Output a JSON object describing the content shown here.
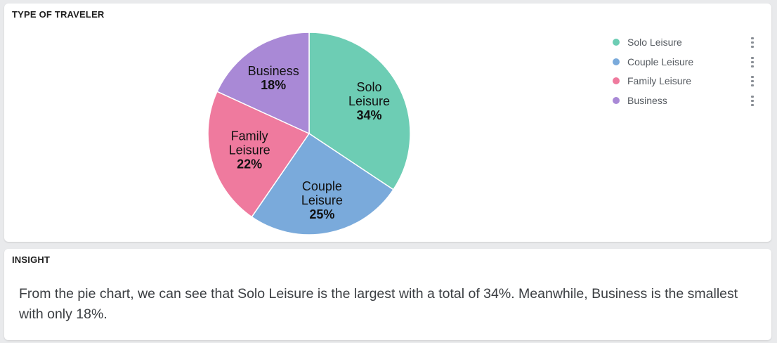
{
  "chart_panel": {
    "title": "TYPE OF TRAVELER"
  },
  "chart_data": {
    "type": "pie",
    "slices": [
      {
        "label_lines": [
          "Solo",
          "Leisure"
        ],
        "legend": "Solo Leisure",
        "value": 34,
        "pct_label": "34%",
        "color": "#6dcdb4"
      },
      {
        "label_lines": [
          "Couple",
          "Leisure"
        ],
        "legend": "Couple Leisure",
        "value": 25,
        "pct_label": "25%",
        "color": "#7aaadb"
      },
      {
        "label_lines": [
          "Family",
          "Leisure"
        ],
        "legend": "Family Leisure",
        "value": 22,
        "pct_label": "22%",
        "color": "#ef7a9e"
      },
      {
        "label_lines": [
          "Business"
        ],
        "legend": "Business",
        "value": 18,
        "pct_label": "18%",
        "color": "#a989d6"
      }
    ],
    "legend_position": "top-right",
    "start": "top",
    "direction": "clockwise"
  },
  "legend": {
    "items": [
      {
        "label": "Solo Leisure",
        "color": "#6dcdb4",
        "icon": "kebab-menu-icon"
      },
      {
        "label": "Couple Leisure",
        "color": "#7aaadb",
        "icon": "kebab-menu-icon"
      },
      {
        "label": "Family Leisure",
        "color": "#ef7a9e",
        "icon": "kebab-menu-icon"
      },
      {
        "label": "Business",
        "color": "#a989d6",
        "icon": "kebab-menu-icon"
      }
    ]
  },
  "insight_panel": {
    "title": "INSIGHT",
    "text": "From the pie chart, we can see that Solo Leisure is the largest with a total of 34%. Meanwhile, Business is the smallest with only 18%."
  }
}
